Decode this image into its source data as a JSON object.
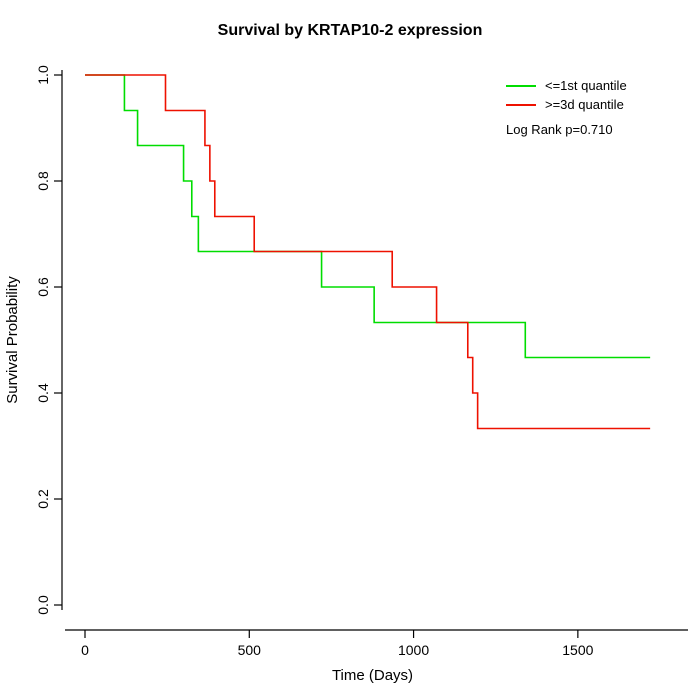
{
  "chart": {
    "title": "Survival by KRTAP10-2 expression"
  },
  "chart_data": {
    "type": "line",
    "step": true,
    "title": "Survival by KRTAP10-2 expression",
    "xlabel": "Time (Days)",
    "ylabel": "Survival Probability",
    "xlim": [
      0,
      1750
    ],
    "ylim": [
      0,
      1
    ],
    "xticks": [
      0,
      500,
      1000,
      1500
    ],
    "xticklabels": [
      "0",
      "500",
      "1000",
      "1500"
    ],
    "yticks": [
      0.0,
      0.2,
      0.4,
      0.6,
      0.8,
      1.0
    ],
    "yticklabels": [
      "0.0",
      "0.2",
      "0.4",
      "0.6",
      "0.8",
      "1.0"
    ],
    "grid": false,
    "legend_position": "top-right",
    "annotation": "Log Rank p=0.710",
    "series": [
      {
        "name": "<=1st quantile",
        "color": "#00DD00",
        "x": [
          0,
          120,
          160,
          300,
          325,
          345,
          720,
          880,
          1340,
          1720
        ],
        "y": [
          1.0,
          0.933,
          0.867,
          0.8,
          0.733,
          0.667,
          0.6,
          0.533,
          0.467,
          0.467
        ]
      },
      {
        "name": ">=3d quantile",
        "color": "#EE1100",
        "x": [
          0,
          245,
          365,
          380,
          395,
          515,
          935,
          1070,
          1165,
          1180,
          1195,
          1720
        ],
        "y": [
          1.0,
          0.933,
          0.867,
          0.8,
          0.733,
          0.667,
          0.6,
          0.533,
          0.467,
          0.4,
          0.333,
          0.333
        ]
      }
    ]
  }
}
